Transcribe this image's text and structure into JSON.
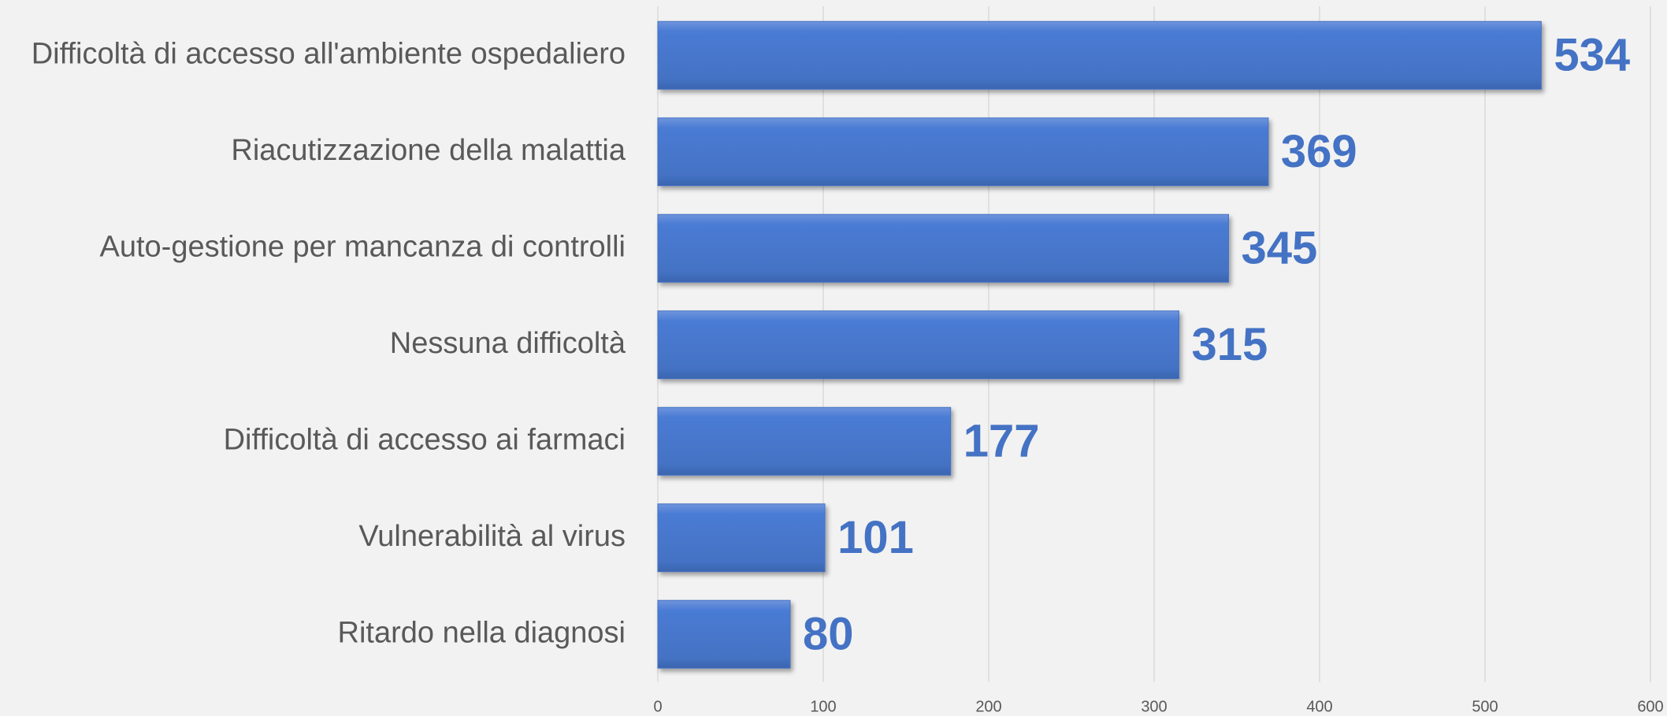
{
  "chart_data": {
    "type": "bar",
    "orientation": "horizontal",
    "categories": [
      "Difficoltà di accesso all'ambiente ospedaliero",
      "Riacutizzazione della malattia",
      "Auto-gestione per mancanza di controlli ",
      "Nessuna difficoltà",
      "Difficoltà di accesso ai farmaci",
      "Vulnerabilità al virus",
      "Ritardo nella diagnosi"
    ],
    "values": [
      534,
      369,
      345,
      315,
      177,
      101,
      80
    ],
    "color": "#4472c4",
    "xlim": [
      0,
      600
    ],
    "xticks": [
      0,
      100,
      200,
      300,
      400,
      500,
      600
    ],
    "grid": true
  }
}
